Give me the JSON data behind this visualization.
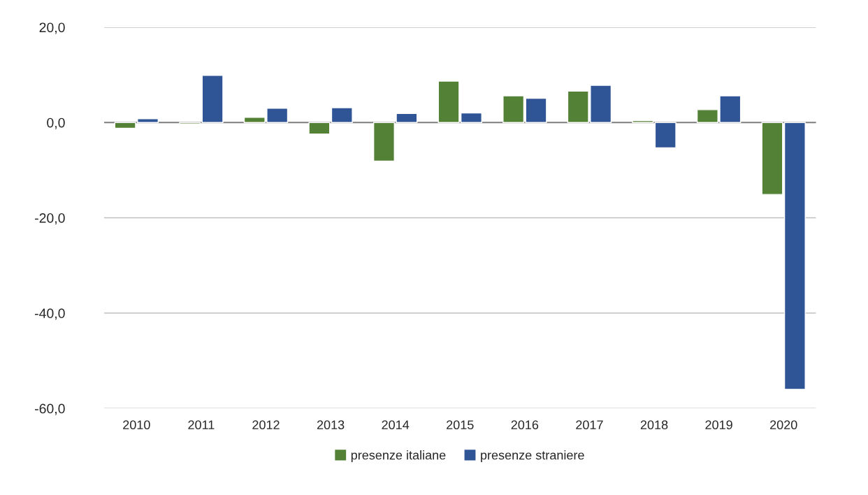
{
  "chart_data": {
    "type": "bar",
    "categories": [
      "2010",
      "2011",
      "2012",
      "2013",
      "2014",
      "2015",
      "2016",
      "2017",
      "2018",
      "2019",
      "2020"
    ],
    "series": [
      {
        "name": "presenze italiane",
        "color": "#538135",
        "values": [
          -1.2,
          -0.3,
          1.1,
          -2.4,
          -8.1,
          8.7,
          5.6,
          6.6,
          0.4,
          2.7,
          -15.1
        ]
      },
      {
        "name": "presenze straniere",
        "color": "#2f5597",
        "values": [
          0.8,
          9.9,
          3.0,
          3.1,
          1.9,
          2.0,
          5.1,
          7.8,
          -5.3,
          5.6,
          -56.0
        ]
      }
    ],
    "ylim": [
      -60,
      20
    ],
    "yticks": [
      {
        "value": -60,
        "label": "-60,0"
      },
      {
        "value": -40,
        "label": "-40,0"
      },
      {
        "value": -20,
        "label": "-20,0"
      },
      {
        "value": 0,
        "label": "0,0"
      },
      {
        "value": 20,
        "label": "20,0"
      }
    ],
    "grid": "y",
    "legend": "bottom"
  }
}
